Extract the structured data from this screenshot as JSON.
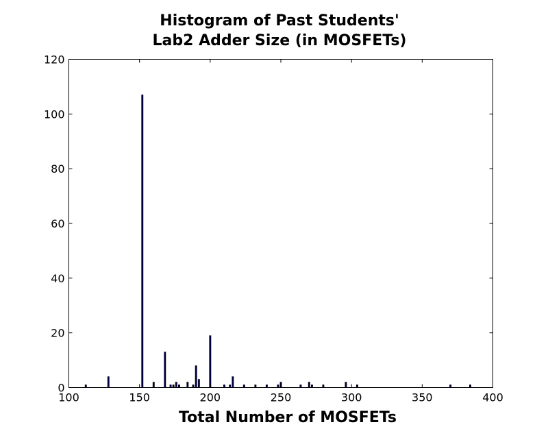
{
  "chart_data": {
    "type": "bar",
    "title_lines": [
      "Histogram of Past Students'",
      "Lab2 Adder Size (in MOSFETs)"
    ],
    "xlabel": "Total Number of MOSFETs",
    "ylabel": "",
    "xlim": [
      100,
      400
    ],
    "ylim": [
      0,
      120
    ],
    "xticks": [
      100,
      150,
      200,
      250,
      300,
      350,
      400
    ],
    "yticks": [
      0,
      20,
      40,
      60,
      80,
      100,
      120
    ],
    "grid": false,
    "bar_color": "#000044",
    "x": [
      112,
      128,
      152,
      160,
      168,
      172,
      174,
      176,
      178,
      184,
      188,
      190,
      192,
      200,
      210,
      214,
      216,
      224,
      232,
      240,
      248,
      250,
      264,
      270,
      272,
      280,
      296,
      304,
      370,
      384
    ],
    "values": [
      1,
      4,
      107,
      2,
      13,
      1,
      1,
      2,
      1,
      2,
      1,
      8,
      3,
      19,
      1,
      1,
      4,
      1,
      1,
      1,
      1,
      2,
      1,
      2,
      1,
      1,
      2,
      1,
      1,
      1
    ]
  }
}
